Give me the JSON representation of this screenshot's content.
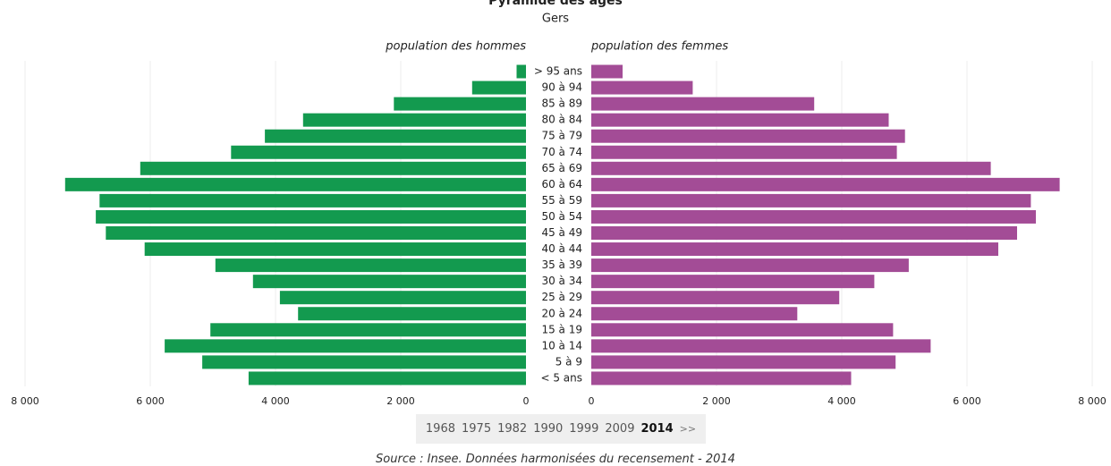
{
  "chart_data": {
    "type": "pyramid",
    "title": "Pyramide des âges",
    "subtitle": "Gers",
    "categories": [
      "> 95 ans",
      "90 à 94",
      "85 à 89",
      "80 à 84",
      "75 à 79",
      "70 à 74",
      "65 à 69",
      "60 à 64",
      "55 à 59",
      "50 à 54",
      "45 à 49",
      "40 à 44",
      "35 à 39",
      "30 à 34",
      "25 à 29",
      "20 à 24",
      "15 à 19",
      "10 à 14",
      "5 à 9",
      "< 5 ans"
    ],
    "series": [
      {
        "name": "population des hommes",
        "color": "#139a4f",
        "side": "left",
        "values": [
          150,
          860,
          2110,
          3560,
          4170,
          4710,
          6160,
          7360,
          6810,
          6870,
          6710,
          6090,
          4960,
          4360,
          3930,
          3640,
          5040,
          5770,
          5170,
          4430
        ]
      },
      {
        "name": "population des femmes",
        "color": "#a34c96",
        "side": "right",
        "values": [
          500,
          1620,
          3560,
          4750,
          5010,
          4880,
          6380,
          7480,
          7020,
          7100,
          6800,
          6500,
          5070,
          4520,
          3960,
          3290,
          4820,
          5420,
          4860,
          4150
        ]
      }
    ],
    "xlim": [
      0,
      8000
    ],
    "xticks": [
      {
        "value": 8000,
        "label": "8 000"
      },
      {
        "value": 6000,
        "label": "6 000"
      },
      {
        "value": 4000,
        "label": "4 000"
      },
      {
        "value": 2000,
        "label": "2 000"
      },
      0
    ],
    "grid": true
  },
  "year_selector": {
    "years": [
      "1968",
      "1975",
      "1982",
      "1990",
      "1999",
      "2009",
      "2014"
    ],
    "selected": "2014",
    "next": ">>"
  },
  "source": "Source : Insee. Données harmonisées du recensement - 2014"
}
